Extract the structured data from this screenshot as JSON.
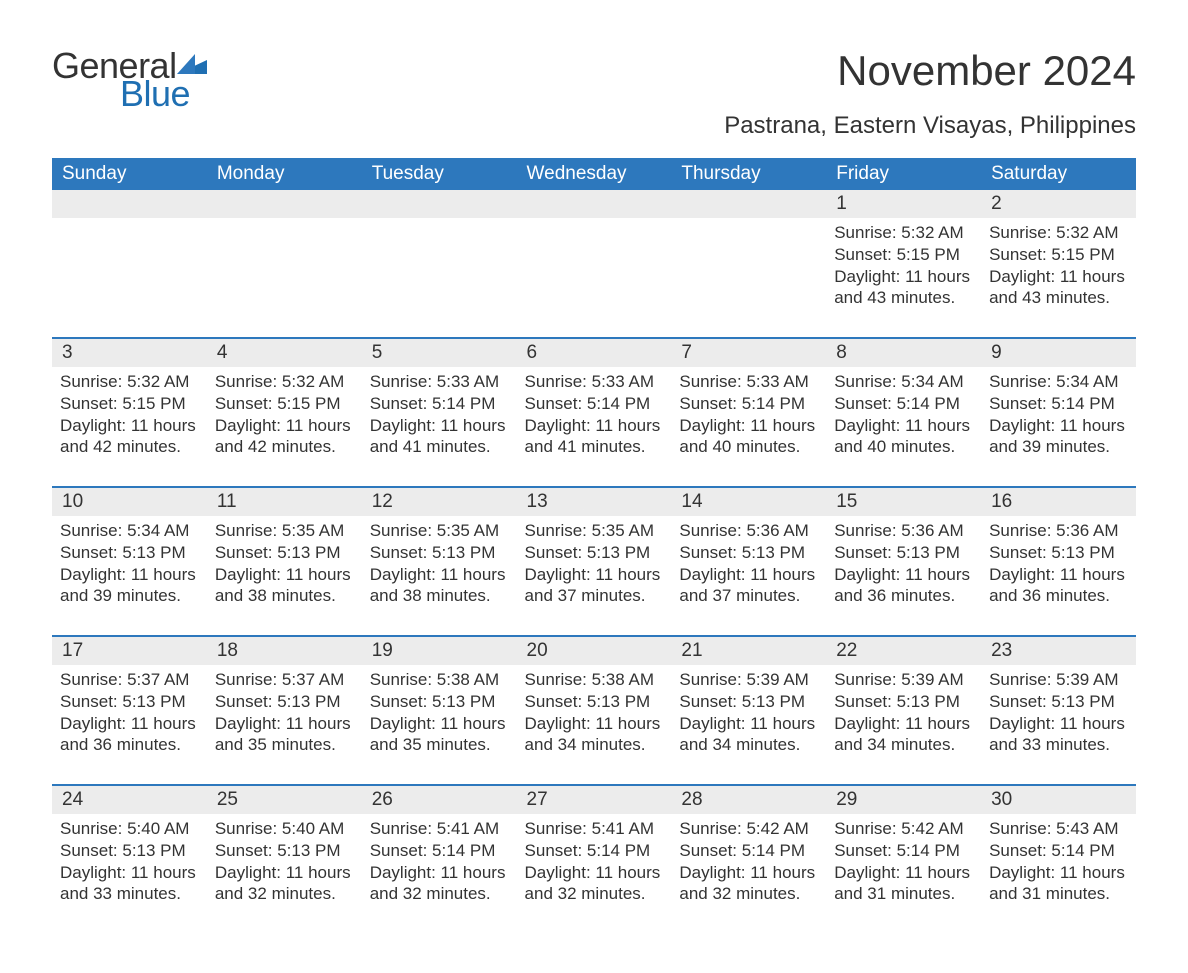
{
  "brand": {
    "general": "General",
    "blue": "Blue",
    "wedge_color": "#1f6fb2"
  },
  "header": {
    "month_title": "November 2024",
    "location": "Pastrana, Eastern Visayas, Philippines"
  },
  "colors": {
    "header_bg": "#2d78bd",
    "header_text": "#ffffff",
    "row_divider": "#2d78bd",
    "daynum_bg": "#ececec",
    "text": "#333333",
    "background": "#ffffff"
  },
  "typography": {
    "title_fontsize": 42,
    "location_fontsize": 24,
    "dow_fontsize": 19,
    "daynum_fontsize": 19,
    "body_fontsize": 17
  },
  "calendar": {
    "days_of_week": [
      "Sunday",
      "Monday",
      "Tuesday",
      "Wednesday",
      "Thursday",
      "Friday",
      "Saturday"
    ],
    "weeks": [
      [
        null,
        null,
        null,
        null,
        null,
        {
          "n": "1",
          "sunrise": "Sunrise: 5:32 AM",
          "sunset": "Sunset: 5:15 PM",
          "daylight": "Daylight: 11 hours and 43 minutes."
        },
        {
          "n": "2",
          "sunrise": "Sunrise: 5:32 AM",
          "sunset": "Sunset: 5:15 PM",
          "daylight": "Daylight: 11 hours and 43 minutes."
        }
      ],
      [
        {
          "n": "3",
          "sunrise": "Sunrise: 5:32 AM",
          "sunset": "Sunset: 5:15 PM",
          "daylight": "Daylight: 11 hours and 42 minutes."
        },
        {
          "n": "4",
          "sunrise": "Sunrise: 5:32 AM",
          "sunset": "Sunset: 5:15 PM",
          "daylight": "Daylight: 11 hours and 42 minutes."
        },
        {
          "n": "5",
          "sunrise": "Sunrise: 5:33 AM",
          "sunset": "Sunset: 5:14 PM",
          "daylight": "Daylight: 11 hours and 41 minutes."
        },
        {
          "n": "6",
          "sunrise": "Sunrise: 5:33 AM",
          "sunset": "Sunset: 5:14 PM",
          "daylight": "Daylight: 11 hours and 41 minutes."
        },
        {
          "n": "7",
          "sunrise": "Sunrise: 5:33 AM",
          "sunset": "Sunset: 5:14 PM",
          "daylight": "Daylight: 11 hours and 40 minutes."
        },
        {
          "n": "8",
          "sunrise": "Sunrise: 5:34 AM",
          "sunset": "Sunset: 5:14 PM",
          "daylight": "Daylight: 11 hours and 40 minutes."
        },
        {
          "n": "9",
          "sunrise": "Sunrise: 5:34 AM",
          "sunset": "Sunset: 5:14 PM",
          "daylight": "Daylight: 11 hours and 39 minutes."
        }
      ],
      [
        {
          "n": "10",
          "sunrise": "Sunrise: 5:34 AM",
          "sunset": "Sunset: 5:13 PM",
          "daylight": "Daylight: 11 hours and 39 minutes."
        },
        {
          "n": "11",
          "sunrise": "Sunrise: 5:35 AM",
          "sunset": "Sunset: 5:13 PM",
          "daylight": "Daylight: 11 hours and 38 minutes."
        },
        {
          "n": "12",
          "sunrise": "Sunrise: 5:35 AM",
          "sunset": "Sunset: 5:13 PM",
          "daylight": "Daylight: 11 hours and 38 minutes."
        },
        {
          "n": "13",
          "sunrise": "Sunrise: 5:35 AM",
          "sunset": "Sunset: 5:13 PM",
          "daylight": "Daylight: 11 hours and 37 minutes."
        },
        {
          "n": "14",
          "sunrise": "Sunrise: 5:36 AM",
          "sunset": "Sunset: 5:13 PM",
          "daylight": "Daylight: 11 hours and 37 minutes."
        },
        {
          "n": "15",
          "sunrise": "Sunrise: 5:36 AM",
          "sunset": "Sunset: 5:13 PM",
          "daylight": "Daylight: 11 hours and 36 minutes."
        },
        {
          "n": "16",
          "sunrise": "Sunrise: 5:36 AM",
          "sunset": "Sunset: 5:13 PM",
          "daylight": "Daylight: 11 hours and 36 minutes."
        }
      ],
      [
        {
          "n": "17",
          "sunrise": "Sunrise: 5:37 AM",
          "sunset": "Sunset: 5:13 PM",
          "daylight": "Daylight: 11 hours and 36 minutes."
        },
        {
          "n": "18",
          "sunrise": "Sunrise: 5:37 AM",
          "sunset": "Sunset: 5:13 PM",
          "daylight": "Daylight: 11 hours and 35 minutes."
        },
        {
          "n": "19",
          "sunrise": "Sunrise: 5:38 AM",
          "sunset": "Sunset: 5:13 PM",
          "daylight": "Daylight: 11 hours and 35 minutes."
        },
        {
          "n": "20",
          "sunrise": "Sunrise: 5:38 AM",
          "sunset": "Sunset: 5:13 PM",
          "daylight": "Daylight: 11 hours and 34 minutes."
        },
        {
          "n": "21",
          "sunrise": "Sunrise: 5:39 AM",
          "sunset": "Sunset: 5:13 PM",
          "daylight": "Daylight: 11 hours and 34 minutes."
        },
        {
          "n": "22",
          "sunrise": "Sunrise: 5:39 AM",
          "sunset": "Sunset: 5:13 PM",
          "daylight": "Daylight: 11 hours and 34 minutes."
        },
        {
          "n": "23",
          "sunrise": "Sunrise: 5:39 AM",
          "sunset": "Sunset: 5:13 PM",
          "daylight": "Daylight: 11 hours and 33 minutes."
        }
      ],
      [
        {
          "n": "24",
          "sunrise": "Sunrise: 5:40 AM",
          "sunset": "Sunset: 5:13 PM",
          "daylight": "Daylight: 11 hours and 33 minutes."
        },
        {
          "n": "25",
          "sunrise": "Sunrise: 5:40 AM",
          "sunset": "Sunset: 5:13 PM",
          "daylight": "Daylight: 11 hours and 32 minutes."
        },
        {
          "n": "26",
          "sunrise": "Sunrise: 5:41 AM",
          "sunset": "Sunset: 5:14 PM",
          "daylight": "Daylight: 11 hours and 32 minutes."
        },
        {
          "n": "27",
          "sunrise": "Sunrise: 5:41 AM",
          "sunset": "Sunset: 5:14 PM",
          "daylight": "Daylight: 11 hours and 32 minutes."
        },
        {
          "n": "28",
          "sunrise": "Sunrise: 5:42 AM",
          "sunset": "Sunset: 5:14 PM",
          "daylight": "Daylight: 11 hours and 32 minutes."
        },
        {
          "n": "29",
          "sunrise": "Sunrise: 5:42 AM",
          "sunset": "Sunset: 5:14 PM",
          "daylight": "Daylight: 11 hours and 31 minutes."
        },
        {
          "n": "30",
          "sunrise": "Sunrise: 5:43 AM",
          "sunset": "Sunset: 5:14 PM",
          "daylight": "Daylight: 11 hours and 31 minutes."
        }
      ]
    ]
  }
}
